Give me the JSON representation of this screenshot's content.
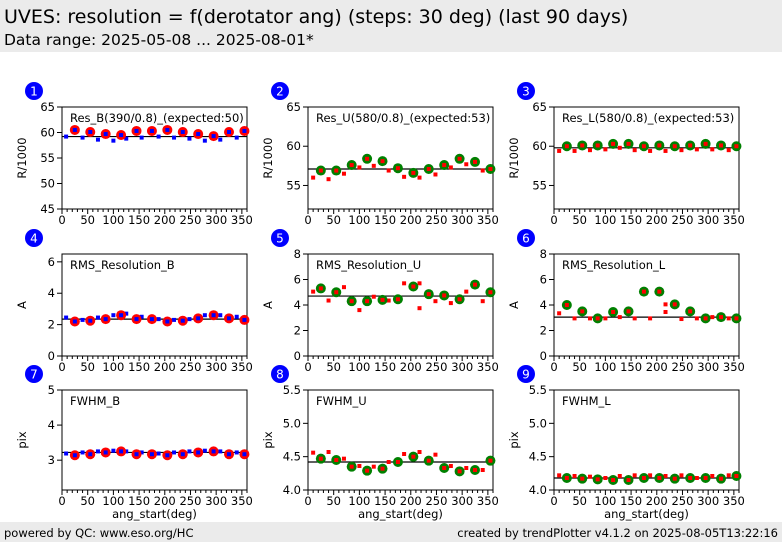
{
  "header": {
    "title": "UVES: resolution = f(derotator ang) (steps: 30 deg) (last 90 days)",
    "subtitle": "Data range: 2025-05-08 ... 2025-08-01*"
  },
  "footer": {
    "left": "powered by QC: www.eso.org/HC",
    "right": "created by trendPlotter v4.1.2 on 2025-08-05T13:22:16"
  },
  "colors": {
    "red": "#ff0000",
    "blue": "#0000ff",
    "green": "#008000",
    "badge": "#0000ff"
  },
  "chart_data": [
    {
      "type": "scatter",
      "badge": "1",
      "title": "Res_B(390/0.8)_(expected:50)",
      "xlabel": "",
      "ylabel": "R/1000",
      "xlim": [
        0,
        360
      ],
      "ylim": [
        45,
        65
      ],
      "xticks": [
        "0",
        "50",
        "100",
        "150",
        "200",
        "250",
        "300",
        "350"
      ],
      "yticks": [
        "45",
        "50",
        "55",
        "60",
        "65"
      ],
      "ytick_values": [
        45,
        50,
        55,
        60,
        65
      ],
      "ref": 59.2,
      "scheme": "B",
      "big_x": [
        25,
        55,
        85,
        115,
        145,
        175,
        205,
        235,
        265,
        295,
        325,
        355
      ],
      "big_y": [
        60.5,
        60.1,
        59.7,
        59.5,
        60.3,
        60.3,
        60.5,
        60.1,
        59.7,
        59.3,
        60.1,
        60.3
      ],
      "small_x": [
        8,
        40,
        70,
        100,
        125,
        155,
        188,
        218,
        248,
        278,
        308,
        340
      ],
      "small_y": [
        59.2,
        59.0,
        58.6,
        58.4,
        58.8,
        59.0,
        59.2,
        59.0,
        58.8,
        58.4,
        58.6,
        59.0
      ]
    },
    {
      "type": "scatter",
      "badge": "2",
      "title": "Res_U(580/0.8)_(expected:53)",
      "xlabel": "",
      "ylabel": "R/1000",
      "xlim": [
        0,
        360
      ],
      "ylim": [
        52,
        65
      ],
      "xticks": [
        "0",
        "50",
        "100",
        "150",
        "200",
        "250",
        "300",
        "350"
      ],
      "yticks": [
        "55",
        "60",
        "65"
      ],
      "ytick_values": [
        55,
        60,
        65
      ],
      "ref": 57.1,
      "scheme": "UL",
      "big_x": [
        25,
        55,
        85,
        115,
        145,
        175,
        205,
        235,
        265,
        295,
        325,
        355
      ],
      "big_y": [
        56.9,
        56.9,
        57.6,
        58.4,
        58.1,
        57.2,
        56.6,
        57.1,
        57.6,
        58.4,
        58.0,
        57.1
      ],
      "small_x": [
        10,
        40,
        70,
        100,
        128,
        157,
        187,
        217,
        248,
        278,
        308,
        340
      ],
      "small_y": [
        56.0,
        55.8,
        56.5,
        57.3,
        57.5,
        56.9,
        56.1,
        56.0,
        56.4,
        57.3,
        57.7,
        56.9
      ]
    },
    {
      "type": "scatter",
      "badge": "3",
      "title": "Res_L(580/0.8)_(expected:53)",
      "xlabel": "",
      "ylabel": "R/1000",
      "xlim": [
        0,
        360
      ],
      "ylim": [
        52,
        65
      ],
      "xticks": [
        "0",
        "50",
        "100",
        "150",
        "200",
        "250",
        "300",
        "350"
      ],
      "yticks": [
        "55",
        "60",
        "65"
      ],
      "ytick_values": [
        55,
        60,
        65
      ],
      "ref": 59.8,
      "scheme": "UL",
      "big_x": [
        25,
        55,
        85,
        115,
        145,
        175,
        205,
        235,
        265,
        295,
        325,
        355
      ],
      "big_y": [
        60.0,
        60.1,
        60.1,
        60.3,
        60.3,
        60.0,
        60.1,
        60.0,
        60.1,
        60.3,
        60.1,
        60.0
      ],
      "small_x": [
        10,
        40,
        70,
        100,
        128,
        157,
        187,
        217,
        248,
        278,
        308,
        340
      ],
      "small_y": [
        59.4,
        59.4,
        59.5,
        59.6,
        59.8,
        59.5,
        59.4,
        59.4,
        59.5,
        59.6,
        59.6,
        59.5
      ]
    },
    {
      "type": "scatter",
      "badge": "4",
      "title": "RMS_Resolution_B",
      "xlabel": "",
      "ylabel": "A",
      "xlim": [
        0,
        360
      ],
      "ylim": [
        0,
        6.5
      ],
      "xticks": [
        "0",
        "50",
        "100",
        "150",
        "200",
        "250",
        "300",
        "350"
      ],
      "yticks": [
        "0",
        "2",
        "4",
        "6"
      ],
      "ytick_values": [
        0,
        2,
        4,
        6
      ],
      "ref": 2.35,
      "scheme": "B",
      "big_x": [
        25,
        55,
        85,
        115,
        145,
        175,
        205,
        235,
        265,
        295,
        325,
        355
      ],
      "big_y": [
        2.2,
        2.25,
        2.35,
        2.6,
        2.35,
        2.35,
        2.2,
        2.25,
        2.4,
        2.6,
        2.4,
        2.3
      ],
      "small_x": [
        8,
        40,
        70,
        100,
        125,
        155,
        188,
        218,
        248,
        278,
        308,
        340
      ],
      "small_y": [
        2.45,
        2.3,
        2.45,
        2.6,
        2.7,
        2.5,
        2.35,
        2.3,
        2.35,
        2.6,
        2.6,
        2.5
      ]
    },
    {
      "type": "scatter",
      "badge": "5",
      "title": "RMS_Resolution_U",
      "xlabel": "",
      "ylabel": "A",
      "xlim": [
        0,
        360
      ],
      "ylim": [
        0,
        8
      ],
      "xticks": [
        "0",
        "50",
        "100",
        "150",
        "200",
        "250",
        "300",
        "350"
      ],
      "yticks": [
        "0",
        "2",
        "4",
        "6",
        "8"
      ],
      "ytick_values": [
        0,
        2,
        4,
        6,
        8
      ],
      "ref": 4.7,
      "scheme": "UL",
      "big_x": [
        25,
        55,
        85,
        115,
        145,
        175,
        205,
        235,
        265,
        295,
        325,
        355
      ],
      "big_y": [
        5.3,
        5.0,
        4.3,
        4.3,
        4.4,
        4.45,
        5.45,
        4.85,
        4.75,
        4.45,
        5.6,
        5.0
      ],
      "small_x": [
        10,
        40,
        70,
        100,
        128,
        157,
        187,
        217,
        217,
        248,
        278,
        308,
        340
      ],
      "small_y": [
        5.05,
        4.35,
        5.4,
        3.6,
        4.65,
        4.35,
        5.7,
        3.75,
        5.7,
        4.3,
        4.15,
        5.05,
        4.3
      ]
    },
    {
      "type": "scatter",
      "badge": "6",
      "title": "RMS_Resolution_L",
      "xlabel": "",
      "ylabel": "A",
      "xlim": [
        0,
        360
      ],
      "ylim": [
        0,
        8
      ],
      "xticks": [
        "0",
        "50",
        "100",
        "150",
        "200",
        "250",
        "300",
        "350"
      ],
      "yticks": [
        "0",
        "2",
        "4",
        "6",
        "8"
      ],
      "ytick_values": [
        0,
        2,
        4,
        6,
        8
      ],
      "ref": 3.05,
      "scheme": "UL",
      "big_x": [
        25,
        55,
        85,
        115,
        145,
        175,
        205,
        235,
        265,
        295,
        325,
        355
      ],
      "big_y": [
        4.0,
        3.5,
        2.95,
        3.45,
        3.5,
        5.05,
        5.05,
        4.05,
        3.5,
        2.95,
        3.05,
        2.95
      ],
      "small_x": [
        10,
        40,
        70,
        100,
        128,
        157,
        187,
        217,
        217,
        248,
        278,
        308,
        340
      ],
      "small_y": [
        3.35,
        2.95,
        2.95,
        2.95,
        3.05,
        2.95,
        2.95,
        3.45,
        4.05,
        2.9,
        2.95,
        3.05,
        2.95
      ]
    },
    {
      "type": "scatter",
      "badge": "7",
      "title": "FWHM_B",
      "xlabel": "ang_start(deg)",
      "ylabel": "pix",
      "xlim": [
        0,
        360
      ],
      "ylim": [
        2.15,
        5
      ],
      "xticks": [
        "0",
        "50",
        "100",
        "150",
        "200",
        "250",
        "300",
        "350"
      ],
      "yticks": [
        "3",
        "4",
        "5"
      ],
      "ytick_values": [
        3,
        4,
        5
      ],
      "ref": 3.22,
      "scheme": "B",
      "big_x": [
        25,
        55,
        85,
        115,
        145,
        175,
        205,
        235,
        265,
        295,
        325,
        355
      ],
      "big_y": [
        3.14,
        3.17,
        3.22,
        3.25,
        3.17,
        3.17,
        3.14,
        3.17,
        3.22,
        3.25,
        3.17,
        3.17
      ],
      "small_x": [
        8,
        40,
        70,
        100,
        125,
        155,
        188,
        218,
        248,
        278,
        308,
        340
      ],
      "small_y": [
        3.19,
        3.22,
        3.25,
        3.27,
        3.25,
        3.22,
        3.19,
        3.22,
        3.25,
        3.27,
        3.25,
        3.22
      ]
    },
    {
      "type": "scatter",
      "badge": "8",
      "title": "FWHM_U",
      "xlabel": "ang_start(deg)",
      "ylabel": "pix",
      "xlim": [
        0,
        360
      ],
      "ylim": [
        4,
        5.5
      ],
      "xticks": [
        "0",
        "50",
        "100",
        "150",
        "200",
        "250",
        "300",
        "350"
      ],
      "yticks": [
        "4.0",
        "4.5",
        "5.0",
        "5.5"
      ],
      "ytick_values": [
        4,
        4.5,
        5,
        5.5
      ],
      "ref": 4.42,
      "scheme": "UL",
      "big_x": [
        25,
        55,
        85,
        115,
        145,
        175,
        205,
        235,
        265,
        295,
        325,
        355
      ],
      "big_y": [
        4.47,
        4.45,
        4.35,
        4.29,
        4.32,
        4.42,
        4.5,
        4.44,
        4.33,
        4.28,
        4.3,
        4.44
      ],
      "small_x": [
        10,
        40,
        70,
        100,
        128,
        157,
        187,
        217,
        248,
        278,
        308,
        340
      ],
      "small_y": [
        4.56,
        4.57,
        4.47,
        4.36,
        4.35,
        4.42,
        4.54,
        4.57,
        4.53,
        4.36,
        4.33,
        4.3
      ]
    },
    {
      "type": "scatter",
      "badge": "9",
      "title": "FWHM_L",
      "xlabel": "ang_start(deg)",
      "ylabel": "pix",
      "xlim": [
        0,
        360
      ],
      "ylim": [
        4,
        5.5
      ],
      "xticks": [
        "0",
        "50",
        "100",
        "150",
        "200",
        "250",
        "300",
        "350"
      ],
      "yticks": [
        "4.0",
        "4.5",
        "5.0",
        "5.5"
      ],
      "ytick_values": [
        4,
        4.5,
        5,
        5.5
      ],
      "ref": 4.18,
      "scheme": "UL",
      "big_x": [
        25,
        55,
        85,
        115,
        145,
        175,
        205,
        235,
        265,
        295,
        325,
        355
      ],
      "big_y": [
        4.18,
        4.17,
        4.16,
        4.15,
        4.15,
        4.18,
        4.18,
        4.17,
        4.18,
        4.18,
        4.17,
        4.21
      ],
      "small_x": [
        10,
        40,
        70,
        100,
        128,
        157,
        187,
        217,
        248,
        278,
        308,
        340
      ],
      "small_y": [
        4.22,
        4.21,
        4.2,
        4.18,
        4.21,
        4.22,
        4.22,
        4.21,
        4.22,
        4.18,
        4.21,
        4.22
      ]
    }
  ]
}
